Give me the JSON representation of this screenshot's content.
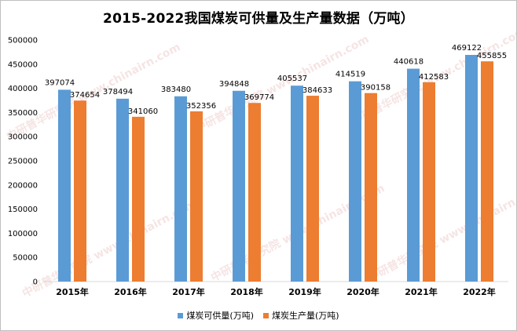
{
  "chart_data": {
    "type": "bar",
    "title": "2015-2022我国煤炭可供量及生产量数据（万吨）",
    "categories": [
      "2015年",
      "2016年",
      "2017年",
      "2018年",
      "2019年",
      "2020年",
      "2021年",
      "2022年"
    ],
    "series": [
      {
        "name": "煤炭可供量(万吨)",
        "color": "#5b9bd5",
        "values": [
          397074,
          378494,
          383480,
          394848,
          405537,
          414519,
          440618,
          469122
        ]
      },
      {
        "name": "煤炭生产量(万吨)",
        "color": "#ed7d31",
        "values": [
          374654,
          341060,
          352356,
          369774,
          384633,
          390158,
          412583,
          455855
        ]
      }
    ],
    "ylim": [
      0,
      500000
    ],
    "yticks": [
      0,
      50000,
      100000,
      150000,
      200000,
      250000,
      300000,
      350000,
      400000,
      450000,
      500000
    ],
    "grid": false,
    "legend": "bottom",
    "watermark": "中研普华研究院 www.chinairn.com"
  }
}
